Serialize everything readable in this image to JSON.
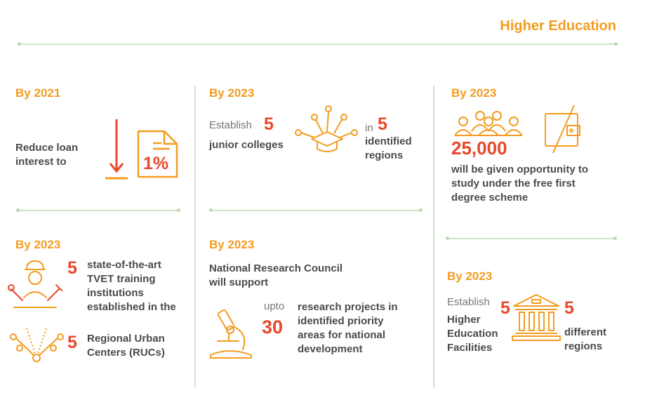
{
  "title": "Higher Education",
  "colors": {
    "orange": "#f39c1f",
    "red": "#e8482d",
    "green_line": "#cfe5c6",
    "text": "#4a4a4a"
  },
  "cells": {
    "loan": {
      "year": "By 2021",
      "line1": "Reduce loan",
      "line2": "interest to",
      "value": "1%",
      "icons": [
        "down-arrow-icon",
        "document-icon"
      ]
    },
    "colleges": {
      "year": "By 2023",
      "establish": "Establish",
      "count": "5",
      "label": "junior colleges",
      "in": "in",
      "region_count": "5",
      "region1": "identified",
      "region2": "regions",
      "icon": "graduation-network-icon"
    },
    "degree": {
      "year": "By 2023",
      "count": "25,000",
      "line1": "will be given opportunity to",
      "line2": "study under the free first",
      "line3": "degree scheme",
      "icons": [
        "people-group-icon",
        "wallet-icon"
      ]
    },
    "tvet": {
      "year": "By 2023",
      "count1": "5",
      "l1": "state-of-the-art",
      "l2": "TVET training",
      "l3": "institutions",
      "l4": "established in the",
      "count2": "5",
      "r1": "Regional Urban",
      "r2": "Centers (RUCs)",
      "icons": [
        "tools-worker-icon",
        "network-icon"
      ]
    },
    "research": {
      "year": "By 2023",
      "t1": "National Research Council",
      "t2": "will support",
      "upto": "upto",
      "count": "30",
      "d1": "research projects in",
      "d2": "identified priority",
      "d3": "areas for national",
      "d4": "development",
      "icon": "microscope-icon"
    },
    "facilities": {
      "year": "By 2023",
      "establish": "Establish",
      "count": "5",
      "l1": "Higher",
      "l2": "Education",
      "l3": "Facilities",
      "count2": "5",
      "r1": "different",
      "r2": "regions",
      "icon": "building-columns-icon"
    }
  }
}
